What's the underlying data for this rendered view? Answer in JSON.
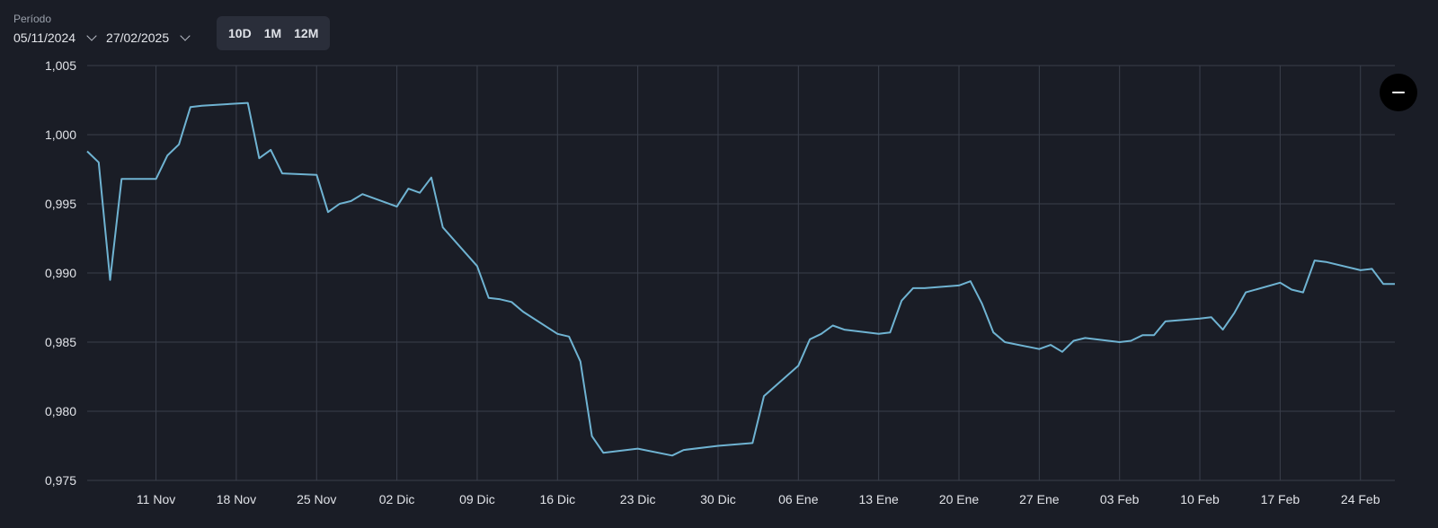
{
  "controls": {
    "period_label": "Período",
    "start_date": "05/11/2024",
    "end_date": "27/02/2025",
    "ranges": [
      "10D",
      "1M",
      "12M"
    ]
  },
  "colors": {
    "line": "#6fb3d2",
    "grid": "#3a3f4b",
    "background": "#1a1d26"
  },
  "zoom_icon": "minus-icon",
  "chart_data": {
    "type": "line",
    "title": "",
    "xlabel": "",
    "ylabel": "",
    "ylim": [
      0.975,
      1.005
    ],
    "yticks": [
      0.975,
      0.98,
      0.985,
      0.99,
      0.995,
      1.0,
      1.005
    ],
    "ytick_labels": [
      "0,975",
      "0,980",
      "0,985",
      "0,990",
      "0,995",
      "1,000",
      "1,005"
    ],
    "xlim": [
      "2024-11-05",
      "2025-02-27"
    ],
    "xticks": [
      "2024-11-11",
      "2024-11-18",
      "2024-11-25",
      "2024-12-02",
      "2024-12-09",
      "2024-12-16",
      "2024-12-23",
      "2024-12-30",
      "2025-01-06",
      "2025-01-13",
      "2025-01-20",
      "2025-01-27",
      "2025-02-03",
      "2025-02-10",
      "2025-02-17",
      "2025-02-24"
    ],
    "xtick_labels": [
      "11 Nov",
      "18 Nov",
      "25 Nov",
      "02 Dic",
      "09 Dic",
      "16 Dic",
      "23 Dic",
      "30 Dic",
      "06 Ene",
      "13 Ene",
      "20 Ene",
      "27 Ene",
      "03 Feb",
      "10 Feb",
      "17 Feb",
      "24 Feb"
    ],
    "grid": true,
    "series": [
      {
        "x": [
          "2024-11-05",
          "2024-11-06",
          "2024-11-07",
          "2024-11-08",
          "2024-11-11",
          "2024-11-12",
          "2024-11-13",
          "2024-11-14",
          "2024-11-15",
          "2024-11-19",
          "2024-11-20",
          "2024-11-21",
          "2024-11-22",
          "2024-11-25",
          "2024-11-26",
          "2024-11-27",
          "2024-11-28",
          "2024-11-29",
          "2024-12-02",
          "2024-12-03",
          "2024-12-04",
          "2024-12-05",
          "2024-12-06",
          "2024-12-09",
          "2024-12-10",
          "2024-12-11",
          "2024-12-12",
          "2024-12-13",
          "2024-12-16",
          "2024-12-17",
          "2024-12-18",
          "2024-12-19",
          "2024-12-20",
          "2024-12-23",
          "2024-12-26",
          "2024-12-27",
          "2024-12-30",
          "2025-01-02",
          "2025-01-03",
          "2025-01-06",
          "2025-01-07",
          "2025-01-08",
          "2025-01-09",
          "2025-01-10",
          "2025-01-13",
          "2025-01-14",
          "2025-01-15",
          "2025-01-16",
          "2025-01-17",
          "2025-01-20",
          "2025-01-21",
          "2025-01-22",
          "2025-01-23",
          "2025-01-24",
          "2025-01-27",
          "2025-01-28",
          "2025-01-29",
          "2025-01-30",
          "2025-01-31",
          "2025-02-03",
          "2025-02-04",
          "2025-02-05",
          "2025-02-06",
          "2025-02-07",
          "2025-02-10",
          "2025-02-11",
          "2025-02-12",
          "2025-02-13",
          "2025-02-14",
          "2025-02-17",
          "2025-02-18",
          "2025-02-19",
          "2025-02-20",
          "2025-02-21",
          "2025-02-24",
          "2025-02-25",
          "2025-02-26",
          "2025-02-27"
        ],
        "y": [
          0.9988,
          0.998,
          0.9895,
          0.9968,
          0.9968,
          0.9985,
          0.9993,
          1.002,
          1.0021,
          1.0023,
          0.9983,
          0.9989,
          0.9972,
          0.9971,
          0.9944,
          0.995,
          0.9952,
          0.9957,
          0.9948,
          0.9961,
          0.9958,
          0.9969,
          0.9933,
          0.9905,
          0.9882,
          0.9881,
          0.9879,
          0.9872,
          0.9856,
          0.9854,
          0.9836,
          0.9782,
          0.977,
          0.9773,
          0.9768,
          0.9772,
          0.9775,
          0.9777,
          0.9811,
          0.9833,
          0.9852,
          0.9856,
          0.9862,
          0.9859,
          0.9856,
          0.9857,
          0.988,
          0.9889,
          0.9889,
          0.9891,
          0.9894,
          0.9878,
          0.9857,
          0.985,
          0.9845,
          0.9848,
          0.9843,
          0.9851,
          0.9853,
          0.985,
          0.9851,
          0.9855,
          0.9855,
          0.9865,
          0.9867,
          0.9868,
          0.9859,
          0.9871,
          0.9886,
          0.9893,
          0.9888,
          0.9886,
          0.9909,
          0.9908,
          0.9902,
          0.9903,
          0.9892,
          0.9892
        ]
      }
    ]
  }
}
